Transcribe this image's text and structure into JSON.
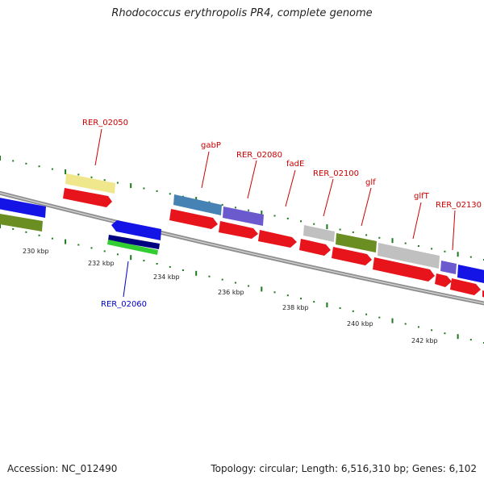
{
  "title": "Rhodococcus erythropolis PR4, complete genome",
  "footer": {
    "accession": "Accession: NC_012490",
    "summary": "Topology: circular; Length: 6,516,310 bp; Genes: 6,102"
  },
  "colors": {
    "backbone": "#888888",
    "tick": "#1c7a1c",
    "label_top": "#cc0000",
    "label_bottom": "#0000cc"
  },
  "tick_labels": [
    "230 kbp",
    "232 kbp",
    "234 kbp",
    "236 kbp",
    "238 kbp",
    "240 kbp",
    "242 kbp"
  ],
  "gene_labels": [
    {
      "name": "RER_02050",
      "color": "#cc0000"
    },
    {
      "name": "RER_02060",
      "color": "#0000cc"
    },
    {
      "name": "gabP",
      "color": "#cc0000"
    },
    {
      "name": "RER_02080",
      "color": "#cc0000"
    },
    {
      "name": "fadE",
      "color": "#cc0000"
    },
    {
      "name": "RER_02100",
      "color": "#cc0000"
    },
    {
      "name": "glf",
      "color": "#cc0000"
    },
    {
      "name": "glfT",
      "color": "#cc0000"
    },
    {
      "name": "RER_02130",
      "color": "#cc0000"
    }
  ],
  "feature_colors": {
    "red": "#e8141c",
    "blue": "#1414e6",
    "olive": "#6b8e23",
    "yellow": "#f0e68c",
    "steel": "#4682b4",
    "purple": "#6a5acd",
    "grey": "#c0c0c0",
    "navy": "#000080",
    "green": "#32cd32"
  }
}
